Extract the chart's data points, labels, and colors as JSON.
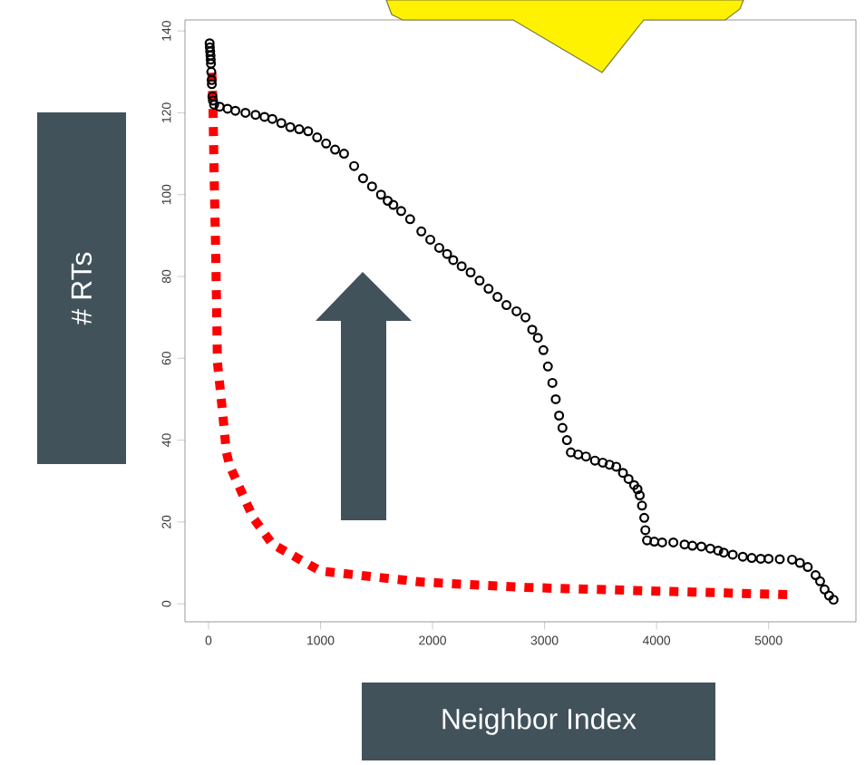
{
  "chart_data": {
    "type": "scatter",
    "xlabel": "Neighbor Index",
    "ylabel": "# RTs",
    "xlim": [
      -210,
      5780
    ],
    "ylim": [
      -4.4,
      142.7
    ],
    "xticks": [
      0,
      1000,
      2000,
      3000,
      4000,
      5000
    ],
    "yticks": [
      0,
      20,
      40,
      60,
      80,
      100,
      120,
      140
    ],
    "series": [
      {
        "type": "scatter",
        "color": "#000000",
        "marker": "circle",
        "x": [
          10,
          12,
          15,
          18,
          20,
          22,
          25,
          28,
          30,
          35,
          40,
          50,
          100,
          170,
          240,
          330,
          420,
          500,
          570,
          650,
          730,
          810,
          890,
          970,
          1050,
          1130,
          1210,
          1300,
          1380,
          1460,
          1540,
          1600,
          1650,
          1720,
          1800,
          1900,
          1980,
          2060,
          2130,
          2185,
          2260,
          2340,
          2420,
          2500,
          2580,
          2660,
          2750,
          2830,
          2890,
          2940,
          2990,
          3030,
          3070,
          3100,
          3130,
          3160,
          3200,
          3235,
          3300,
          3370,
          3450,
          3520,
          3580,
          3640,
          3700,
          3750,
          3800,
          3830,
          3850,
          3870,
          3890,
          3900,
          3915,
          3980,
          4050,
          4150,
          4250,
          4320,
          4400,
          4480,
          4550,
          4600,
          4680,
          4770,
          4850,
          4930,
          5000,
          5100,
          5210,
          5280,
          5350,
          5420,
          5460,
          5500,
          5540,
          5580
        ],
        "values": [
          137,
          136,
          135,
          134,
          133,
          132,
          130,
          128,
          127,
          124,
          123,
          122,
          121.5,
          121,
          120.5,
          120,
          119.5,
          119,
          118.5,
          117.5,
          116.5,
          116,
          115.5,
          114,
          112.5,
          111,
          110,
          107,
          104,
          102,
          100,
          98.5,
          97.5,
          96,
          94,
          91,
          89,
          87,
          85.5,
          84,
          82.5,
          81,
          79,
          77,
          75,
          73,
          71.5,
          70,
          67,
          65,
          62,
          58,
          54,
          50,
          46,
          43,
          40,
          37,
          36.5,
          36,
          35,
          34.5,
          34,
          33.5,
          32,
          30.5,
          29,
          28,
          26.5,
          24,
          21,
          18,
          15.5,
          15.2,
          15,
          15,
          14.5,
          14.2,
          14,
          13.5,
          13,
          12.5,
          12,
          11.5,
          11.2,
          11,
          11,
          10.9,
          10.8,
          10,
          9,
          7,
          5.5,
          3.5,
          2,
          1
        ]
      },
      {
        "type": "line",
        "color": "#ff0000",
        "line_style": "dotted",
        "x": [
          30,
          40,
          50,
          65,
          80,
          130,
          160,
          190,
          400,
          570,
          1000,
          1910,
          2830,
          4010,
          5230
        ],
        "values": [
          129.8,
          122,
          105,
          85,
          59,
          45.6,
          37,
          33.7,
          21,
          14.6,
          8,
          5.3,
          4,
          3.1,
          2.2
        ]
      }
    ]
  }
}
